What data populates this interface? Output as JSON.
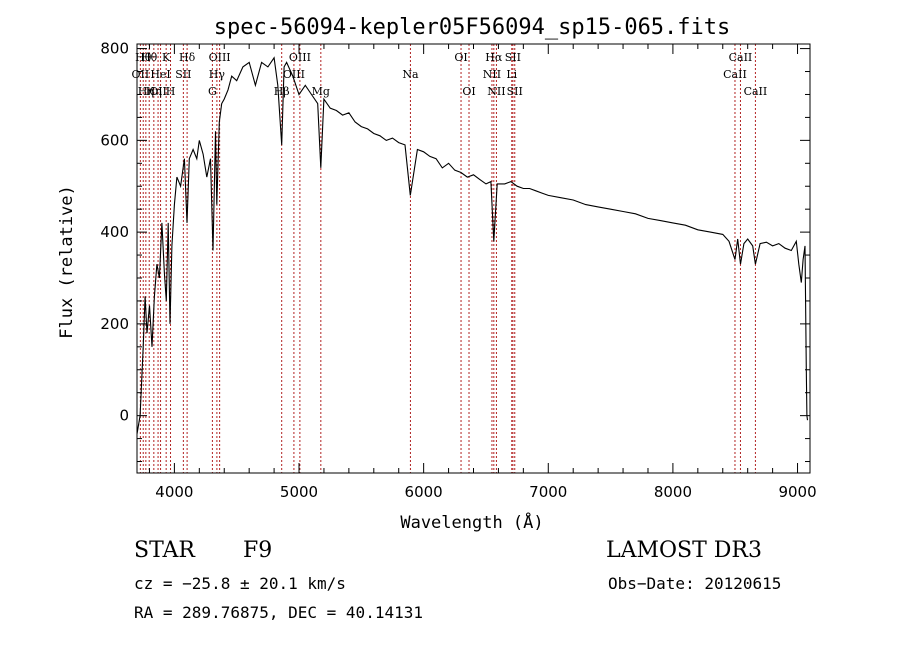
{
  "chart_data": {
    "type": "line",
    "title": "spec-56094-kepler05F56094_sp15-065.fits",
    "xlabel": "Wavelength (Å)",
    "ylabel": "Flux (relative)",
    "xlim": [
      3700,
      9100
    ],
    "ylim": [
      -125,
      810
    ],
    "xticks": [
      4000,
      5000,
      6000,
      7000,
      8000,
      9000
    ],
    "yticks": [
      0,
      200,
      400,
      600,
      800
    ],
    "x_minor_step": 200,
    "y_minor_step": 50,
    "grid": false,
    "line_color": "#000000",
    "marker_color": "#b22222",
    "series": [
      {
        "name": "flux",
        "x": [
          3700,
          3725,
          3750,
          3765,
          3780,
          3800,
          3820,
          3840,
          3860,
          3880,
          3900,
          3920,
          3935,
          3950,
          3965,
          3980,
          4000,
          4020,
          4050,
          4080,
          4101,
          4120,
          4150,
          4180,
          4200,
          4230,
          4260,
          4290,
          4310,
          4330,
          4340,
          4360,
          4380,
          4400,
          4430,
          4460,
          4500,
          4550,
          4600,
          4650,
          4700,
          4750,
          4800,
          4830,
          4861,
          4880,
          4900,
          4950,
          5000,
          5050,
          5100,
          5150,
          5175,
          5200,
          5250,
          5300,
          5350,
          5400,
          5450,
          5500,
          5550,
          5600,
          5650,
          5700,
          5750,
          5800,
          5850,
          5893,
          5950,
          6000,
          6050,
          6100,
          6150,
          6200,
          6250,
          6300,
          6350,
          6400,
          6450,
          6500,
          6540,
          6563,
          6590,
          6650,
          6700,
          6750,
          6800,
          6850,
          6900,
          6950,
          7000,
          7100,
          7200,
          7300,
          7400,
          7500,
          7600,
          7700,
          7800,
          7900,
          8000,
          8100,
          8200,
          8300,
          8400,
          8450,
          8498,
          8520,
          8542,
          8570,
          8600,
          8640,
          8662,
          8700,
          8750,
          8800,
          8850,
          8900,
          8950,
          8990,
          9010,
          9030,
          9045,
          9060,
          9070,
          9075,
          9080
        ],
        "y": [
          -40,
          0,
          150,
          260,
          180,
          240,
          150,
          260,
          330,
          300,
          420,
          310,
          250,
          420,
          200,
          370,
          460,
          520,
          500,
          560,
          420,
          560,
          580,
          560,
          600,
          570,
          520,
          560,
          360,
          620,
          460,
          640,
          680,
          690,
          710,
          740,
          730,
          760,
          770,
          720,
          770,
          760,
          780,
          720,
          590,
          760,
          770,
          740,
          700,
          720,
          700,
          680,
          540,
          690,
          670,
          665,
          655,
          660,
          640,
          630,
          625,
          615,
          610,
          600,
          605,
          595,
          590,
          480,
          580,
          575,
          565,
          560,
          540,
          550,
          535,
          530,
          520,
          525,
          515,
          505,
          510,
          380,
          505,
          505,
          510,
          500,
          495,
          495,
          490,
          485,
          480,
          475,
          470,
          460,
          455,
          450,
          445,
          440,
          430,
          425,
          420,
          415,
          405,
          400,
          395,
          380,
          340,
          385,
          330,
          375,
          385,
          370,
          330,
          375,
          378,
          370,
          375,
          365,
          360,
          380,
          330,
          290,
          340,
          370,
          100,
          0,
          -10
        ]
      }
    ],
    "lines": [
      {
        "wavelength": 3727,
        "label": "OII",
        "row": 2
      },
      {
        "wavelength": 3750,
        "label": "Hθ",
        "row": 1
      },
      {
        "wavelength": 3771,
        "label": "Hη",
        "row": 3
      },
      {
        "wavelength": 3798,
        "label": "Hθ",
        "row": 1
      },
      {
        "wavelength": 3835,
        "label": "Hη",
        "row": 3
      },
      {
        "wavelength": 3869,
        "label": "OII",
        "row": 3
      },
      {
        "wavelength": 3889,
        "label": "HeI",
        "row": 2
      },
      {
        "wavelength": 3934,
        "label": "K",
        "row": 1
      },
      {
        "wavelength": 3969,
        "label": "H",
        "row": 3
      },
      {
        "wavelength": 4072,
        "label": "SII",
        "row": 2
      },
      {
        "wavelength": 4102,
        "label": "Hδ",
        "row": 1
      },
      {
        "wavelength": 4305,
        "label": "G",
        "row": 3
      },
      {
        "wavelength": 4341,
        "label": "Hγ",
        "row": 2
      },
      {
        "wavelength": 4363,
        "label": "OIII",
        "row": 1
      },
      {
        "wavelength": 4861,
        "label": "Hβ",
        "row": 3
      },
      {
        "wavelength": 4959,
        "label": "OIII",
        "row": 2
      },
      {
        "wavelength": 5007,
        "label": "OIII",
        "row": 1
      },
      {
        "wavelength": 5175,
        "label": "Mg",
        "row": 3
      },
      {
        "wavelength": 5894,
        "label": "Na",
        "row": 2
      },
      {
        "wavelength": 6300,
        "label": "OI",
        "row": 1
      },
      {
        "wavelength": 6364,
        "label": "OI",
        "row": 3
      },
      {
        "wavelength": 6548,
        "label": "NII",
        "row": 2
      },
      {
        "wavelength": 6563,
        "label": "Hα",
        "row": 1
      },
      {
        "wavelength": 6584,
        "label": "NII",
        "row": 3
      },
      {
        "wavelength": 6707,
        "label": "Li",
        "row": 2
      },
      {
        "wavelength": 6716,
        "label": "SII",
        "row": 1
      },
      {
        "wavelength": 6731,
        "label": "SII",
        "row": 3
      },
      {
        "wavelength": 8498,
        "label": "CaII",
        "row": 2
      },
      {
        "wavelength": 8542,
        "label": "CaII",
        "row": 1
      },
      {
        "wavelength": 8662,
        "label": "CaII",
        "row": 3
      }
    ]
  },
  "info": {
    "object_type": "STAR",
    "subclass": "F9",
    "survey": "LAMOST DR3",
    "cz": "cz = −25.8 ± 20.1 km/s",
    "obs_date": "Obs−Date: 20120615",
    "radec": "RA = 289.76875, DEC =  40.14131"
  }
}
